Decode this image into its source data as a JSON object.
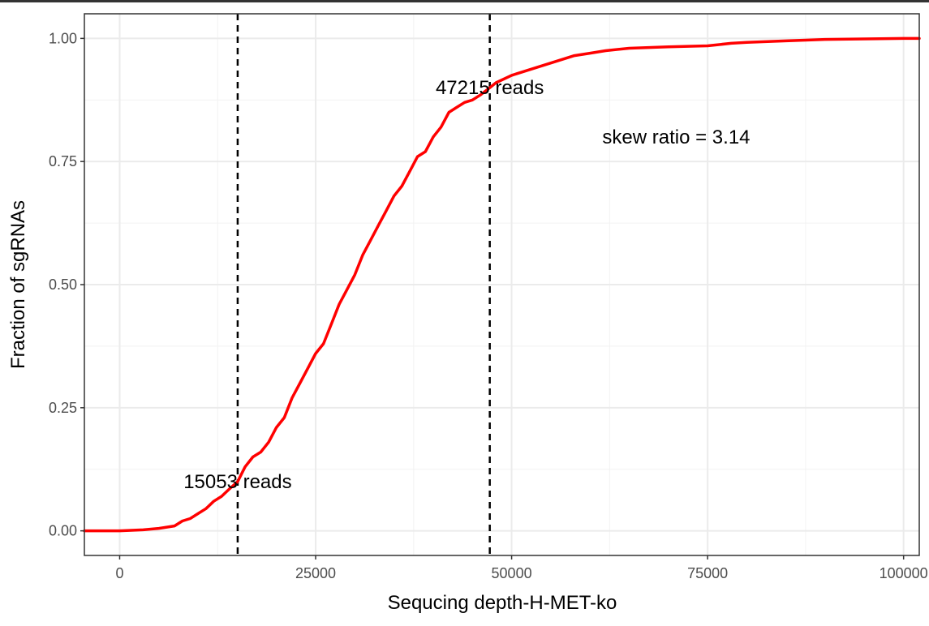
{
  "chart_data": {
    "type": "line",
    "title": "",
    "xlabel": "Sequcing depth-H-MET-ko",
    "ylabel": "Fraction of sgRNAs",
    "xlim": [
      -4500,
      102000
    ],
    "ylim": [
      -0.05,
      1.05
    ],
    "x_ticks": [
      {
        "value": 0,
        "label": "0"
      },
      {
        "value": 25000,
        "label": "25000"
      },
      {
        "value": 50000,
        "label": "50000"
      },
      {
        "value": 75000,
        "label": "75000"
      },
      {
        "value": 100000,
        "label": "100000"
      }
    ],
    "y_ticks": [
      {
        "value": 0,
        "label": "0.00"
      },
      {
        "value": 0.25,
        "label": "0.25"
      },
      {
        "value": 0.5,
        "label": "0.50"
      },
      {
        "value": 0.75,
        "label": "0.75"
      },
      {
        "value": 1.0,
        "label": "1.00"
      }
    ],
    "grid": true,
    "theme": "bw",
    "series": [
      {
        "color": "#ff0000",
        "x": [
          -4500,
          0,
          3000,
          5000,
          7000,
          8000,
          9000,
          10000,
          11000,
          12000,
          13000,
          14000,
          15053,
          16000,
          17000,
          18000,
          19000,
          20000,
          21000,
          22000,
          23000,
          24000,
          25000,
          26000,
          27000,
          28000,
          29000,
          30000,
          31000,
          32000,
          33000,
          34000,
          35000,
          36000,
          37000,
          38000,
          39000,
          40000,
          41000,
          42000,
          43000,
          44000,
          45000,
          46000,
          47215,
          48000,
          50000,
          52000,
          55000,
          58000,
          60000,
          62000,
          65000,
          70000,
          75000,
          78000,
          80000,
          85000,
          90000,
          95000,
          100000,
          102000
        ],
        "y": [
          0.0,
          0.0,
          0.002,
          0.005,
          0.01,
          0.02,
          0.025,
          0.035,
          0.045,
          0.06,
          0.07,
          0.085,
          0.1,
          0.13,
          0.15,
          0.16,
          0.18,
          0.21,
          0.23,
          0.27,
          0.3,
          0.33,
          0.36,
          0.38,
          0.42,
          0.46,
          0.49,
          0.52,
          0.56,
          0.59,
          0.62,
          0.65,
          0.68,
          0.7,
          0.73,
          0.76,
          0.77,
          0.8,
          0.82,
          0.85,
          0.86,
          0.87,
          0.875,
          0.885,
          0.9,
          0.91,
          0.925,
          0.935,
          0.95,
          0.965,
          0.97,
          0.975,
          0.98,
          0.983,
          0.985,
          0.99,
          0.992,
          0.995,
          0.998,
          0.999,
          1.0,
          1.0
        ]
      }
    ],
    "vlines": [
      15053,
      47215
    ],
    "annotations": [
      {
        "text": "15053 reads",
        "x": 15053,
        "y": 0.1
      },
      {
        "text": "47215 reads",
        "x": 47215,
        "y": 0.9
      },
      {
        "text": "skew ratio = 3.14",
        "x": 71000,
        "y": 0.8
      }
    ]
  }
}
